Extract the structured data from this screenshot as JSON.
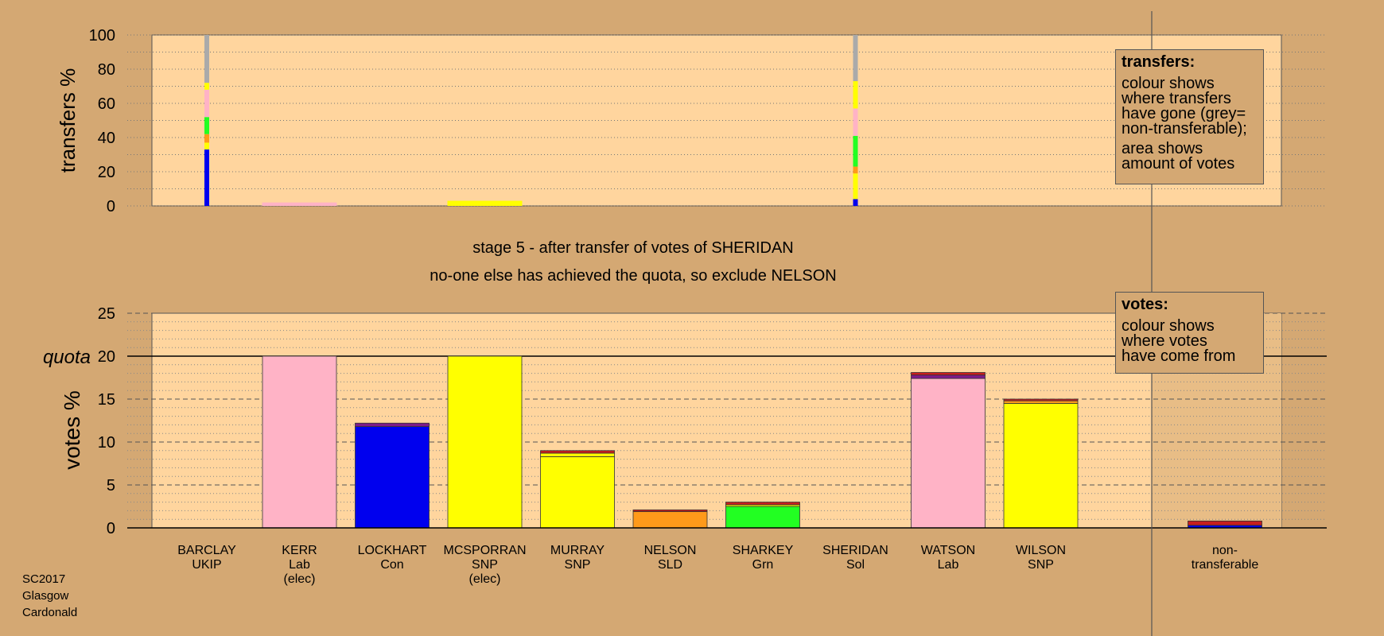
{
  "colors": {
    "background": "#d4a873",
    "plot_area": "#ffd59e",
    "party": {
      "UKIP": "#7d1b8a",
      "Lab": "#ffb3c6",
      "Con": "#0000ee",
      "SNP": "#ffff00",
      "SLD": "#ff9a1a",
      "Grn": "#22ff22",
      "Sol": "#c81e1e",
      "nontransferable": "#aaaaaa"
    }
  },
  "stage_text": {
    "line1": "stage 5 - after transfer of votes of SHERIDAN",
    "line2": "no-one else has achieved the quota, so exclude NELSON"
  },
  "legend_transfers": {
    "title": "transfers:",
    "lines": [
      "colour shows",
      "where transfers",
      "have gone (grey=",
      "non-transferable);"
    ],
    "lines2": [
      "area shows",
      "amount of votes"
    ]
  },
  "legend_votes": {
    "title": "votes:",
    "lines": [
      "colour shows",
      "where votes",
      "have come from"
    ]
  },
  "footer": [
    "SC2017",
    "Glasgow",
    "Cardonald"
  ],
  "chart_data": [
    {
      "type": "bar",
      "ylabel": "transfers %",
      "ylim": [
        0,
        100
      ],
      "yticks": [
        0,
        20,
        40,
        60,
        80,
        100
      ],
      "categories": [
        "BARCLAY",
        "KERR",
        "LOCKHART",
        "MCSPORRAN",
        "MURRAY",
        "NELSON",
        "SHARKEY",
        "SHERIDAN",
        "WATSON",
        "WILSON"
      ],
      "transfer_bars": [
        {
          "from": "BARCLAY",
          "stack": [
            {
              "party": "Con",
              "value": 33
            },
            {
              "party": "SNP",
              "value": 4
            },
            {
              "party": "SLD",
              "value": 5
            },
            {
              "party": "Grn",
              "value": 10
            },
            {
              "party": "Lab",
              "value": 16
            },
            {
              "party": "SNP",
              "value": 4
            },
            {
              "party": "nontransferable",
              "value": 28
            }
          ]
        },
        {
          "from": "SHERIDAN",
          "stack": [
            {
              "party": "Con",
              "value": 4
            },
            {
              "party": "SNP",
              "value": 15
            },
            {
              "party": "SLD",
              "value": 4
            },
            {
              "party": "Grn",
              "value": 18
            },
            {
              "party": "Lab",
              "value": 16
            },
            {
              "party": "SNP",
              "value": 16
            },
            {
              "party": "nontransferable",
              "value": 27
            }
          ]
        }
      ],
      "surplus_bars": [
        {
          "from": "KERR",
          "party": "Lab",
          "value": 2
        },
        {
          "from": "MCSPORRAN",
          "party": "SNP",
          "value": 3
        }
      ]
    },
    {
      "type": "bar",
      "ylabel": "votes %",
      "ylim": [
        0,
        25
      ],
      "yticks": [
        0,
        5,
        10,
        15,
        20,
        25
      ],
      "quota_label": "quota",
      "quota": 20,
      "candidates": [
        {
          "name": "BARCLAY",
          "party": "UKIP",
          "note": "",
          "stack": []
        },
        {
          "name": "KERR",
          "party": "Lab",
          "note": "(elec)",
          "stack": [
            {
              "party": "Lab",
              "value": 20
            }
          ]
        },
        {
          "name": "LOCKHART",
          "party": "Con",
          "note": "",
          "stack": [
            {
              "party": "Con",
              "value": 11.8
            },
            {
              "party": "UKIP",
              "value": 0.4
            }
          ]
        },
        {
          "name": "MCSPORRAN",
          "party": "SNP",
          "note": "(elec)",
          "stack": [
            {
              "party": "SNP",
              "value": 20
            }
          ]
        },
        {
          "name": "MURRAY",
          "party": "SNP",
          "note": "",
          "stack": [
            {
              "party": "SNP",
              "value": 8.3
            },
            {
              "party": "SNP",
              "value": 0.4
            },
            {
              "party": "Sol",
              "value": 0.3
            }
          ]
        },
        {
          "name": "NELSON",
          "party": "SLD",
          "note": "",
          "stack": [
            {
              "party": "SLD",
              "value": 1.9
            },
            {
              "party": "Sol",
              "value": 0.2
            }
          ]
        },
        {
          "name": "SHARKEY",
          "party": "Grn",
          "note": "",
          "stack": [
            {
              "party": "Grn",
              "value": 2.5
            },
            {
              "party": "SNP",
              "value": 0.2
            },
            {
              "party": "Sol",
              "value": 0.3
            }
          ]
        },
        {
          "name": "SHERIDAN",
          "party": "Sol",
          "note": "",
          "stack": []
        },
        {
          "name": "WATSON",
          "party": "Lab",
          "note": "",
          "stack": [
            {
              "party": "Lab",
              "value": 17.4
            },
            {
              "party": "UKIP",
              "value": 0.4
            },
            {
              "party": "Sol",
              "value": 0.3
            }
          ]
        },
        {
          "name": "WILSON",
          "party": "SNP",
          "note": "",
          "stack": [
            {
              "party": "SNP",
              "value": 14.5
            },
            {
              "party": "SLD",
              "value": 0.3
            },
            {
              "party": "Sol",
              "value": 0.2
            }
          ]
        }
      ],
      "nontransferable": {
        "label_line1": "non-",
        "label_line2": "transferable",
        "stack": [
          {
            "party": "Con",
            "value": 0.3
          },
          {
            "party": "Sol",
            "value": 0.5
          }
        ]
      }
    }
  ]
}
